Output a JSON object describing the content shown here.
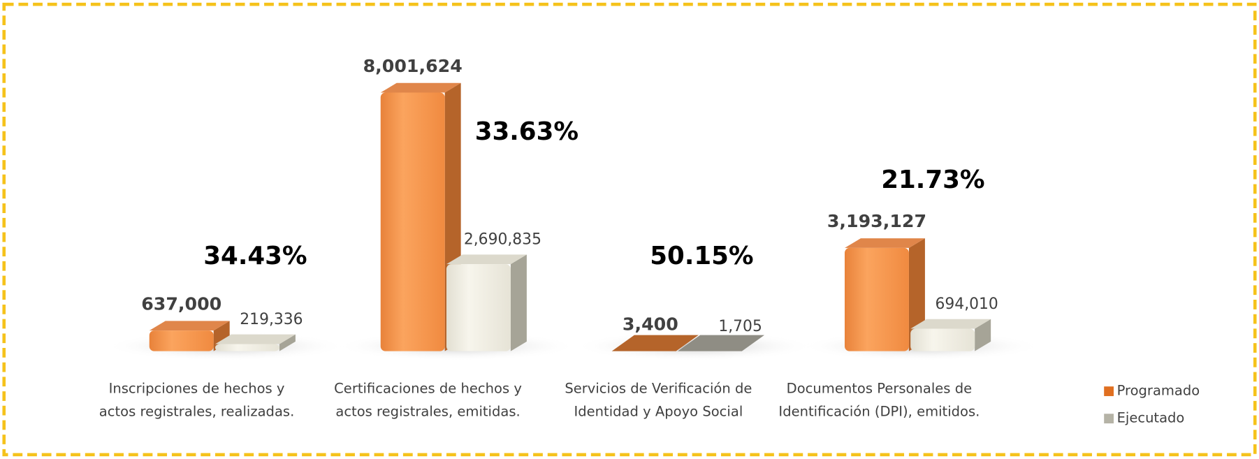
{
  "chart_data": {
    "type": "bar3d",
    "categories": [
      "Inscripciones de hechos y actos registrales, realizadas.",
      "Certificaciones de hechos y actos registrales, emitidas.",
      "Servicios de Verificación de Identidad y Apoyo Social",
      "Documentos Personales de Identificación (DPI), emitidos."
    ],
    "series": [
      {
        "name": "Programado",
        "color": "#f79646",
        "values": [
          637000,
          8001624,
          3400,
          3193127
        ],
        "value_labels": [
          "637,000",
          "8,001,624",
          "3,400",
          "3,193,127"
        ]
      },
      {
        "name": "Ejecutado",
        "color": "#eeebdf",
        "values": [
          219336,
          2690835,
          1705,
          694010
        ],
        "value_labels": [
          "219,336",
          "2,690,835",
          "1,705",
          "694,010"
        ]
      }
    ],
    "execution_rate": {
      "values": [
        34.43,
        33.63,
        50.15,
        21.73
      ],
      "value_labels": [
        "34.43%",
        "33.63%",
        "50.15%",
        "21.73%"
      ]
    },
    "legend": "right"
  }
}
